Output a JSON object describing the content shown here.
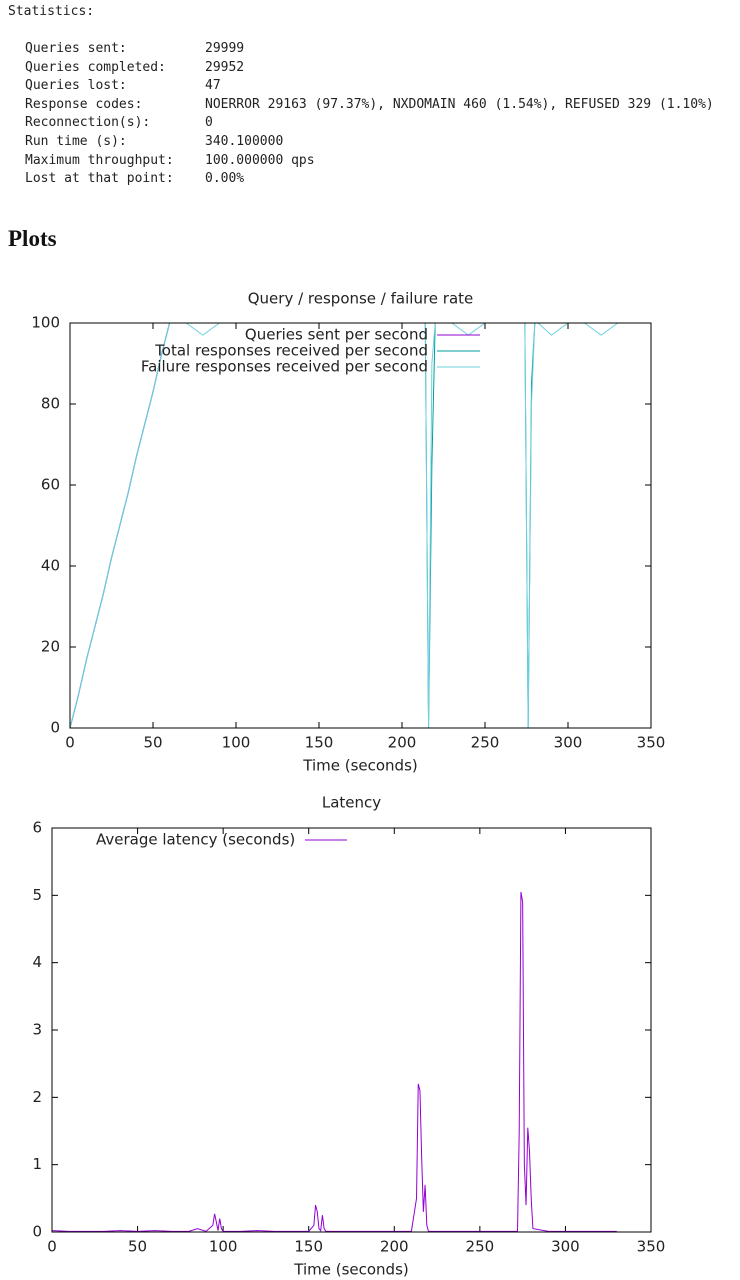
{
  "statistics": {
    "title": "Statistics:",
    "rows": [
      [
        "Queries sent:",
        "29999"
      ],
      [
        "Queries completed:",
        "29952"
      ],
      [
        "Queries lost:",
        "47"
      ],
      [
        "Response codes:",
        "NOERROR 29163 (97.37%), NXDOMAIN 460 (1.54%), REFUSED 329 (1.10%)"
      ],
      [
        "Reconnection(s):",
        "0"
      ],
      [
        "Run time (s):",
        "340.100000"
      ],
      [
        "Maximum throughput:",
        "100.000000 qps"
      ],
      [
        "Lost at that point:",
        "0.00%"
      ]
    ]
  },
  "heading": "Plots",
  "chart_data": [
    {
      "type": "line",
      "title": "Query / response / failure rate",
      "xlabel": "Time (seconds)",
      "xlim": [
        0,
        350
      ],
      "xticks": [
        0,
        50,
        100,
        150,
        200,
        250,
        300,
        350
      ],
      "ylim": [
        0,
        100
      ],
      "yticks": [
        0,
        20,
        40,
        60,
        80,
        100
      ],
      "grid": false,
      "legend": "top-right",
      "x": [
        0,
        5,
        10,
        15,
        20,
        25,
        30,
        35,
        40,
        45,
        50,
        55,
        60,
        70,
        80,
        90,
        100,
        110,
        120,
        130,
        140,
        150,
        160,
        170,
        180,
        190,
        200,
        210,
        214,
        216,
        218,
        220,
        230,
        240,
        250,
        260,
        270,
        274,
        276,
        278,
        280,
        282,
        290,
        300,
        310,
        320,
        330,
        340
      ],
      "series": [
        {
          "name": "Queries sent per second",
          "color": "#9400d3",
          "values": [
            0,
            8,
            17,
            25,
            33,
            42,
            50,
            58,
            67,
            75,
            83,
            92,
            100,
            100,
            100,
            100,
            100,
            100,
            100,
            100,
            100,
            100,
            100,
            100,
            100,
            100,
            100,
            100,
            100,
            100,
            100,
            100,
            100,
            100,
            100,
            100,
            100,
            100,
            100,
            100,
            100,
            100,
            100,
            100,
            100,
            100,
            100,
            null
          ]
        },
        {
          "name": "Total responses received per second",
          "color": "#009e9e",
          "values": [
            0,
            8,
            17,
            25,
            33,
            42,
            50,
            58,
            67,
            75,
            83,
            92,
            100,
            100,
            100,
            100,
            100,
            100,
            100,
            100,
            100,
            100,
            100,
            100,
            100,
            100,
            100,
            100,
            100,
            0,
            65,
            100,
            100,
            100,
            100,
            100,
            100,
            100,
            0,
            85,
            100,
            100,
            100,
            100,
            100,
            100,
            100,
            null
          ]
        },
        {
          "name": "Failure responses received per second",
          "color": "#6fd0e0",
          "values": [
            0,
            8,
            17,
            25,
            33,
            42,
            50,
            58,
            67,
            75,
            83,
            92,
            100,
            100,
            97,
            100,
            100,
            100,
            100,
            100,
            100,
            100,
            100,
            100,
            100,
            100,
            100,
            100,
            100,
            0,
            90,
            100,
            100,
            97,
            100,
            100,
            100,
            100,
            0,
            80,
            100,
            100,
            97,
            100,
            100,
            97,
            100,
            null
          ]
        }
      ]
    },
    {
      "type": "line",
      "title": "Latency",
      "xlabel": "Time (seconds)",
      "xlim": [
        0,
        350
      ],
      "xticks": [
        0,
        50,
        100,
        150,
        200,
        250,
        300,
        350
      ],
      "ylim": [
        0,
        6
      ],
      "yticks": [
        0,
        1,
        2,
        3,
        4,
        5,
        6
      ],
      "grid": false,
      "legend": "top-left",
      "x": [
        0,
        10,
        20,
        30,
        40,
        50,
        60,
        70,
        80,
        85,
        90,
        94,
        95,
        96,
        97,
        98,
        99,
        100,
        110,
        120,
        130,
        140,
        150,
        153,
        154,
        155,
        156,
        157,
        158,
        159,
        160,
        170,
        180,
        190,
        200,
        210,
        213,
        214,
        215,
        216,
        217,
        218,
        219,
        220,
        230,
        240,
        250,
        260,
        270,
        272,
        273,
        274,
        275,
        276,
        277,
        278,
        279,
        280,
        281,
        290,
        300,
        310,
        320,
        330
      ],
      "series": [
        {
          "name": "Average latency (seconds)",
          "color": "#9400d3",
          "values": [
            0.02,
            0.01,
            0.01,
            0.01,
            0.02,
            0.01,
            0.02,
            0.01,
            0.01,
            0.05,
            0.01,
            0.1,
            0.27,
            0.15,
            0.02,
            0.2,
            0.05,
            0.01,
            0.01,
            0.02,
            0.01,
            0.01,
            0.01,
            0.1,
            0.4,
            0.3,
            0.05,
            0.02,
            0.25,
            0.05,
            0.01,
            0.01,
            0.01,
            0.01,
            0.01,
            0.01,
            0.5,
            2.2,
            2.1,
            1.1,
            0.3,
            0.7,
            0.1,
            0.01,
            0.01,
            0.01,
            0.01,
            0.01,
            0.01,
            0.01,
            1.5,
            5.05,
            4.9,
            1.0,
            0.4,
            1.55,
            1.2,
            0.5,
            0.05,
            0.01,
            0.01,
            0.01,
            0.01,
            0.01
          ]
        }
      ]
    }
  ]
}
